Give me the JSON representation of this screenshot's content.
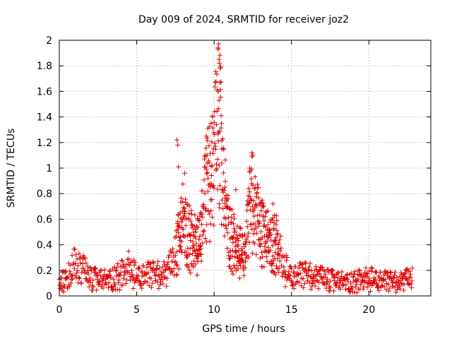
{
  "chart_data": {
    "type": "scatter",
    "title": "Day 009 of 2024, SRMTID for receiver joz2",
    "xlabel": "GPS time / hours",
    "ylabel": "SRMTID / TECUs",
    "xlim": [
      0,
      24
    ],
    "ylim": [
      0,
      2
    ],
    "x_ticks": [
      0,
      5,
      10,
      15,
      20
    ],
    "x_tick_labels": [
      "0",
      "5",
      "10",
      "15",
      "20"
    ],
    "y_ticks": [
      0,
      0.2,
      0.4,
      0.6,
      0.8,
      1,
      1.2,
      1.4,
      1.6,
      1.8,
      2
    ],
    "y_tick_labels": [
      "0",
      "0.2",
      "0.4",
      "0.6",
      "0.8",
      "1",
      "1.2",
      "1.4",
      "1.6",
      "1.8",
      "2"
    ],
    "grid": true,
    "marker": "+",
    "marker_color": "#e00000",
    "x_start": 0,
    "x_end": 22.8,
    "x_step": 0.025,
    "envelope": [
      {
        "x": 0.0,
        "y": 0.1
      },
      {
        "x": 0.5,
        "y": 0.13
      },
      {
        "x": 1.0,
        "y": 0.22
      },
      {
        "x": 1.4,
        "y": 0.2
      },
      {
        "x": 2.0,
        "y": 0.12
      },
      {
        "x": 3.0,
        "y": 0.11
      },
      {
        "x": 4.0,
        "y": 0.15
      },
      {
        "x": 4.5,
        "y": 0.2
      },
      {
        "x": 5.0,
        "y": 0.13
      },
      {
        "x": 6.0,
        "y": 0.15
      },
      {
        "x": 7.0,
        "y": 0.16
      },
      {
        "x": 7.5,
        "y": 0.28
      },
      {
        "x": 8.0,
        "y": 0.55
      },
      {
        "x": 8.5,
        "y": 0.4
      },
      {
        "x": 9.0,
        "y": 0.35
      },
      {
        "x": 9.5,
        "y": 0.75
      },
      {
        "x": 10.0,
        "y": 0.95
      },
      {
        "x": 10.3,
        "y": 1.35
      },
      {
        "x": 10.6,
        "y": 0.75
      },
      {
        "x": 11.0,
        "y": 0.45
      },
      {
        "x": 11.5,
        "y": 0.32
      },
      {
        "x": 12.0,
        "y": 0.3
      },
      {
        "x": 12.4,
        "y": 0.7
      },
      {
        "x": 13.0,
        "y": 0.45
      },
      {
        "x": 13.5,
        "y": 0.4
      },
      {
        "x": 14.0,
        "y": 0.38
      },
      {
        "x": 14.5,
        "y": 0.2
      },
      {
        "x": 15.0,
        "y": 0.13
      },
      {
        "x": 16.0,
        "y": 0.15
      },
      {
        "x": 17.0,
        "y": 0.12
      },
      {
        "x": 18.0,
        "y": 0.1
      },
      {
        "x": 19.0,
        "y": 0.1
      },
      {
        "x": 20.0,
        "y": 0.12
      },
      {
        "x": 21.0,
        "y": 0.1
      },
      {
        "x": 22.0,
        "y": 0.1
      },
      {
        "x": 22.8,
        "y": 0.12
      }
    ],
    "peaks": [
      {
        "x": 10.25,
        "y": 1.94
      },
      {
        "x": 10.27,
        "y": 1.93
      },
      {
        "x": 10.32,
        "y": 1.85
      },
      {
        "x": 10.35,
        "y": 1.82
      },
      {
        "x": 10.4,
        "y": 1.78
      },
      {
        "x": 10.38,
        "y": 1.67
      },
      {
        "x": 10.28,
        "y": 1.6
      },
      {
        "x": 10.32,
        "y": 1.53
      },
      {
        "x": 10.45,
        "y": 1.41
      },
      {
        "x": 9.9,
        "y": 1.4
      },
      {
        "x": 9.8,
        "y": 1.35
      },
      {
        "x": 9.6,
        "y": 1.31
      },
      {
        "x": 10.3,
        "y": 1.28
      },
      {
        "x": 9.5,
        "y": 1.25
      },
      {
        "x": 7.6,
        "y": 1.22
      },
      {
        "x": 7.65,
        "y": 1.18
      },
      {
        "x": 12.45,
        "y": 1.12
      },
      {
        "x": 12.5,
        "y": 1.1
      },
      {
        "x": 10.5,
        "y": 1.15
      },
      {
        "x": 9.55,
        "y": 1.1
      },
      {
        "x": 7.7,
        "y": 1.01
      },
      {
        "x": 12.3,
        "y": 1.0
      },
      {
        "x": 8.1,
        "y": 0.96
      },
      {
        "x": 11.4,
        "y": 0.83
      },
      {
        "x": 13.1,
        "y": 0.75
      },
      {
        "x": 13.8,
        "y": 0.72
      }
    ]
  }
}
